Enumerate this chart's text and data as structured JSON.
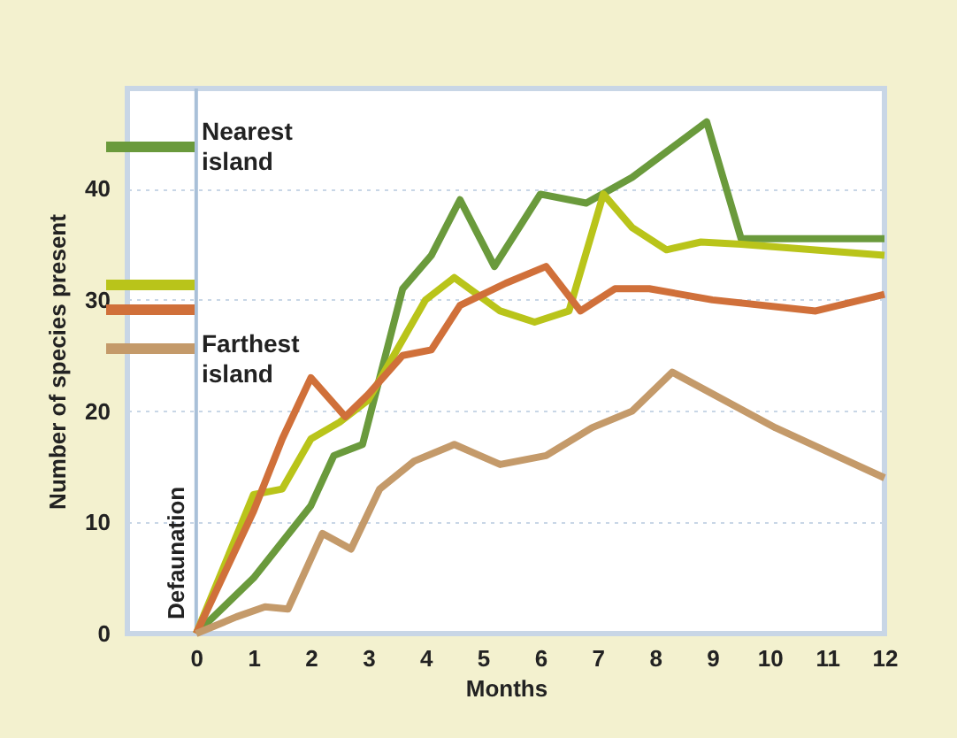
{
  "chart_data": {
    "type": "line",
    "xlabel": "Months",
    "ylabel": "Number of species present",
    "xlim": [
      -1.2,
      12
    ],
    "xticks": [
      0,
      1,
      2,
      3,
      4,
      5,
      6,
      7,
      8,
      9,
      10,
      11,
      12
    ],
    "ylim": [
      0,
      49
    ],
    "yticks": [
      0,
      10,
      20,
      30,
      40
    ],
    "grid": "y",
    "legend": "top left",
    "marker": "none",
    "line_style": "solid",
    "ref_lines": [
      {
        "axis": "x",
        "value": 0,
        "label": "Defaunation",
        "color": "#a9c0d8"
      }
    ],
    "series": [
      {
        "name": "Nearest island",
        "color": "#6a9a3c",
        "x": [
          0,
          1,
          2,
          2.4,
          2.9,
          3.6,
          4.1,
          4.6,
          5.2,
          6,
          6.8,
          7.6,
          8.9,
          9.5,
          12
        ],
        "values": [
          0,
          5,
          11.5,
          16,
          17,
          31,
          34,
          39,
          33,
          39.5,
          38.7,
          41,
          46,
          35.5,
          35.5
        ]
      },
      {
        "color": "#b9c41a",
        "x": [
          0,
          1,
          1.5,
          2,
          2.5,
          3,
          4,
          4.5,
          5.3,
          5.9,
          6.5,
          7.1,
          7.6,
          8.2,
          8.8,
          9.5,
          12
        ],
        "values": [
          0,
          12.5,
          13,
          17.5,
          19,
          21,
          30,
          32,
          29,
          28,
          29,
          39.5,
          36.5,
          34.5,
          35.2,
          35,
          34
        ]
      },
      {
        "color": "#d0703a",
        "x": [
          0,
          1,
          1.5,
          2,
          2.6,
          3,
          3.6,
          4.1,
          4.6,
          5.4,
          6.1,
          6.7,
          7.3,
          7.9,
          9,
          10.8,
          12
        ],
        "values": [
          0,
          11,
          17.5,
          23,
          19.5,
          21.5,
          25,
          25.5,
          29.5,
          31.5,
          33,
          29,
          31,
          31,
          30,
          29,
          30.5
        ]
      },
      {
        "name": "Farthest island",
        "color": "#c49a6a",
        "x": [
          0,
          0.7,
          1.2,
          1.6,
          2.2,
          2.7,
          3.2,
          3.8,
          4.5,
          5.3,
          6.1,
          6.9,
          7.6,
          8.3,
          10.1,
          12
        ],
        "values": [
          0,
          1.5,
          2.4,
          2.2,
          9,
          7.6,
          13,
          15.5,
          17,
          15.2,
          16,
          18.5,
          20,
          23.5,
          18.5,
          14
        ]
      }
    ]
  }
}
